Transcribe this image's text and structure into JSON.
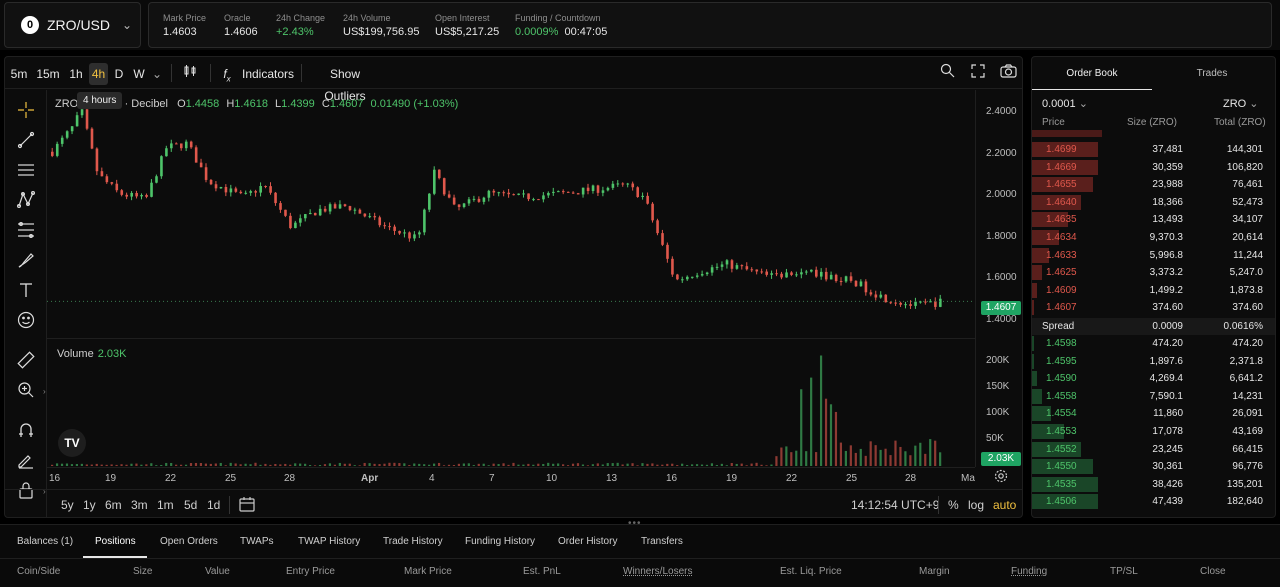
{
  "symbol": {
    "icon": "zro-icon",
    "name": "ZRO/USD"
  },
  "stats": [
    {
      "label": "Mark Price",
      "value": "1.4603",
      "color": ""
    },
    {
      "label": "Oracle",
      "value": "1.4606",
      "color": ""
    },
    {
      "label": "24h Change",
      "value": "+2.43%",
      "color": "green"
    },
    {
      "label": "24h Volume",
      "value": "US$199,756.95",
      "color": ""
    },
    {
      "label": "Open Interest",
      "value": "US$5,217.25",
      "color": ""
    }
  ],
  "funding": {
    "label": "Funding / Countdown",
    "rate": "0.0009%",
    "countdown": "00:47:05"
  },
  "toolbar": {
    "intervals": [
      "5m",
      "15m",
      "1h",
      "4h",
      "D",
      "W"
    ],
    "active_interval": "4h",
    "indicators": "Indicators",
    "show_outliers": "Show Outliers",
    "tooltip": "4 hours"
  },
  "legend": {
    "symbol": "ZRO",
    "interval_source": "4h · Decibel",
    "o_label": "O",
    "o": "1.4458",
    "h_label": "H",
    "h": "1.4618",
    "l_label": "L",
    "l": "1.4399",
    "c_label": "C",
    "c": "1.4607",
    "change": "0.01490 (+1.03%)"
  },
  "volume": {
    "label": "Volume",
    "value": "2.03K"
  },
  "price_axis": [
    "2.4000",
    "2.2000",
    "2.0000",
    "1.8000",
    "1.6000",
    "1.4000"
  ],
  "current_price_tag": "1.4607",
  "volume_axis": [
    "200K",
    "150K",
    "100K",
    "50K"
  ],
  "volume_tag": "2.03K",
  "time_axis": [
    "16",
    "19",
    "22",
    "25",
    "28",
    "Apr",
    "4",
    "7",
    "10",
    "13",
    "16",
    "19",
    "22",
    "25",
    "28",
    "Ma"
  ],
  "ranges": [
    "5y",
    "1y",
    "6m",
    "3m",
    "1m",
    "5d",
    "1d"
  ],
  "clock": "14:12:54 UTC+9",
  "scale_options": {
    "percent": "%",
    "log": "log",
    "auto": "auto"
  },
  "orderbook": {
    "tabs": [
      "Order Book",
      "Trades"
    ],
    "tick": "0.0001",
    "unit": "ZRO",
    "headers": {
      "price": "Price",
      "size": "Size (ZRO)",
      "total": "Total (ZRO)"
    },
    "asks": [
      {
        "price": "1.4699",
        "size": "37,481",
        "total": "144,301",
        "depth": 0.27
      },
      {
        "price": "1.4669",
        "size": "30,359",
        "total": "106,820",
        "depth": 0.27
      },
      {
        "price": "1.4655",
        "size": "23,988",
        "total": "76,461",
        "depth": 0.25
      },
      {
        "price": "1.4640",
        "size": "18,366",
        "total": "52,473",
        "depth": 0.2
      },
      {
        "price": "1.4635",
        "size": "13,493",
        "total": "34,107",
        "depth": 0.15
      },
      {
        "price": "1.4634",
        "size": "9,370.3",
        "total": "20,614",
        "depth": 0.11
      },
      {
        "price": "1.4633",
        "size": "5,996.8",
        "total": "11,244",
        "depth": 0.07
      },
      {
        "price": "1.4625",
        "size": "3,373.2",
        "total": "5,247.0",
        "depth": 0.04
      },
      {
        "price": "1.4609",
        "size": "1,499.2",
        "total": "1,873.8",
        "depth": 0.02
      },
      {
        "price": "1.4607",
        "size": "374.60",
        "total": "374.60",
        "depth": 0.01
      }
    ],
    "spread": {
      "label": "Spread",
      "value": "0.0009",
      "percent": "0.0616%"
    },
    "bids": [
      {
        "price": "1.4598",
        "size": "474.20",
        "total": "474.20",
        "depth": 0.01
      },
      {
        "price": "1.4595",
        "size": "1,897.6",
        "total": "2,371.8",
        "depth": 0.01
      },
      {
        "price": "1.4590",
        "size": "4,269.4",
        "total": "6,641.2",
        "depth": 0.02
      },
      {
        "price": "1.4558",
        "size": "7,590.1",
        "total": "14,231",
        "depth": 0.04
      },
      {
        "price": "1.4554",
        "size": "11,860",
        "total": "26,091",
        "depth": 0.08
      },
      {
        "price": "1.4553",
        "size": "17,078",
        "total": "43,169",
        "depth": 0.13
      },
      {
        "price": "1.4552",
        "size": "23,245",
        "total": "66,415",
        "depth": 0.2
      },
      {
        "price": "1.4550",
        "size": "30,361",
        "total": "96,776",
        "depth": 0.25
      },
      {
        "price": "1.4535",
        "size": "38,426",
        "total": "135,201",
        "depth": 0.27
      },
      {
        "price": "1.4506",
        "size": "47,439",
        "total": "182,640",
        "depth": 0.27
      }
    ]
  },
  "bottom_tabs": [
    "Balances (1)",
    "Positions",
    "Open Orders",
    "TWAPs",
    "TWAP History",
    "Trade History",
    "Funding History",
    "Order History",
    "Transfers"
  ],
  "active_bottom_tab": "Positions",
  "position_columns": [
    "Coin/Side",
    "Size",
    "Value",
    "Entry Price",
    "Mark Price",
    "Est. PnL",
    "Winners/Losers",
    "Est. Liq. Price",
    "Margin",
    "Funding",
    "TP/SL",
    "Close"
  ],
  "colors": {
    "up": "#4ec46a",
    "down": "#e0584c",
    "ask_bar": "#5a1f1c",
    "bid_bar": "#1a4628",
    "accent": "#f0c040"
  }
}
